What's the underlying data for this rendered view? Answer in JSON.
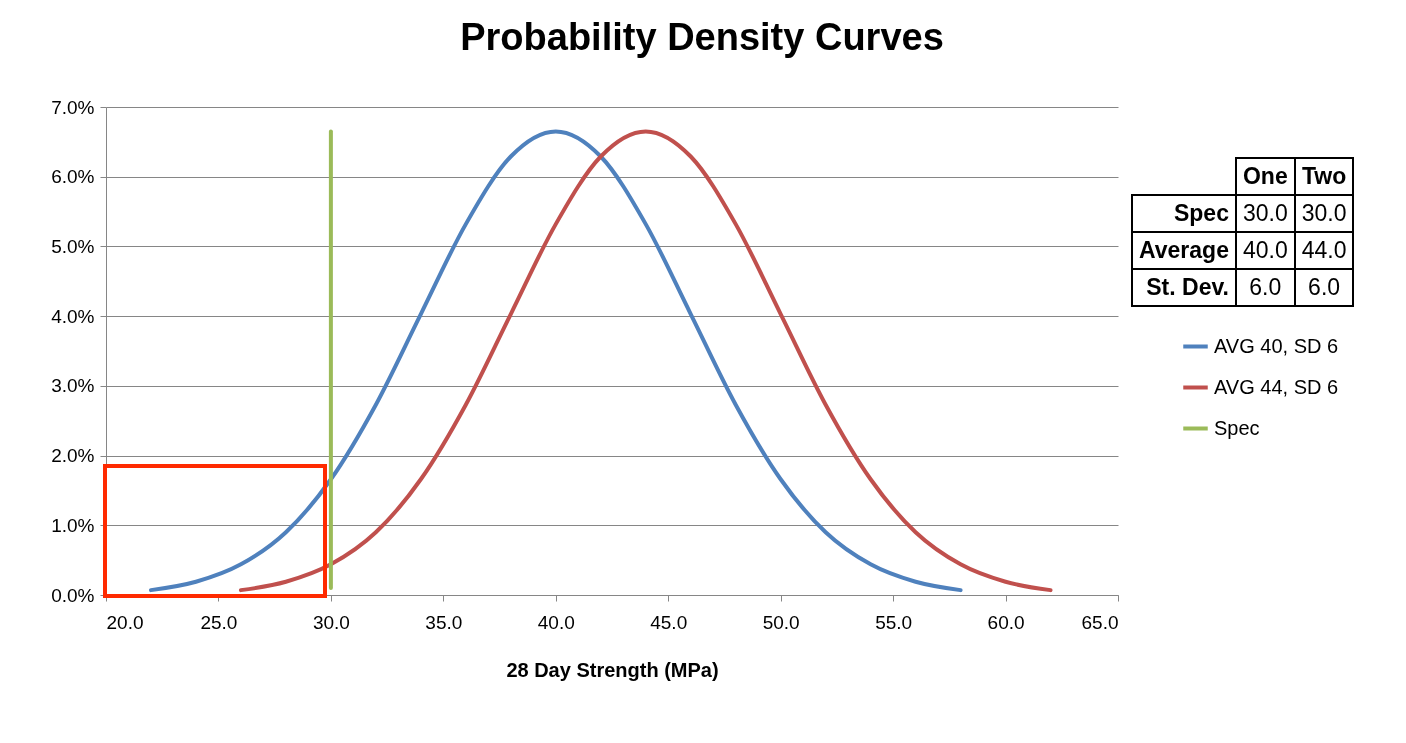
{
  "chart_data": [
    {
      "type": "line",
      "title": "Probability Density Curves",
      "xlabel": "28 Day Strength (MPa)",
      "xlim": [
        20,
        65
      ],
      "xticks": [
        {
          "value": 20,
          "label": "20.0"
        },
        {
          "value": 25,
          "label": "25.0"
        },
        {
          "value": 30,
          "label": "30.0"
        },
        {
          "value": 35,
          "label": "35.0"
        },
        {
          "value": 40,
          "label": "40.0"
        },
        {
          "value": 45,
          "label": "45.0"
        },
        {
          "value": 50,
          "label": "50.0"
        },
        {
          "value": 55,
          "label": "55.0"
        },
        {
          "value": 60,
          "label": "60.0"
        },
        {
          "value": 65,
          "label": "65.0"
        }
      ],
      "ylim": [
        0,
        7
      ],
      "yticks": [
        {
          "value": 0,
          "label": "0.0%"
        },
        {
          "value": 1,
          "label": "1.0%"
        },
        {
          "value": 2,
          "label": "2.0%"
        },
        {
          "value": 3,
          "label": "3.0%"
        },
        {
          "value": 4,
          "label": "4.0%"
        },
        {
          "value": 5,
          "label": "5.0%"
        },
        {
          "value": 6,
          "label": "6.0%"
        },
        {
          "value": 7,
          "label": "7.0%"
        }
      ],
      "grid": "y",
      "legend": "right",
      "marker": "none",
      "series": [
        {
          "name": "AVG 40, SD 6",
          "color": "#4f81bd",
          "x": [
            22,
            24,
            26,
            28,
            30,
            32,
            34,
            36,
            38,
            40,
            42,
            44,
            46,
            48,
            50,
            52,
            54,
            56,
            58
          ],
          "values": [
            0.07,
            0.19,
            0.44,
            0.9,
            1.66,
            2.73,
            4.03,
            5.32,
            6.29,
            6.65,
            6.29,
            5.32,
            4.03,
            2.73,
            1.66,
            0.9,
            0.44,
            0.19,
            0.07
          ]
        },
        {
          "name": "AVG 44, SD 6",
          "color": "#c0504d",
          "x": [
            26,
            28,
            30,
            32,
            34,
            36,
            38,
            40,
            42,
            44,
            46,
            48,
            50,
            52,
            54,
            56,
            58,
            60,
            62
          ],
          "values": [
            0.07,
            0.19,
            0.44,
            0.9,
            1.66,
            2.73,
            4.03,
            5.32,
            6.29,
            6.65,
            6.29,
            5.32,
            4.03,
            2.73,
            1.66,
            0.9,
            0.44,
            0.19,
            0.07
          ]
        },
        {
          "name": "Spec",
          "color": "#9bbb59",
          "x": [
            30,
            30
          ],
          "values": [
            0.1,
            6.65
          ]
        }
      ]
    },
    {
      "type": "other",
      "categories": [
        "One",
        "Two"
      ],
      "y_categories": [
        "Spec",
        "Average",
        "St. Dev."
      ],
      "cell_labels": [
        [
          "30.0",
          "30.0"
        ],
        [
          "40.0",
          "44.0"
        ],
        [
          "6.0",
          "6.0"
        ]
      ]
    }
  ]
}
